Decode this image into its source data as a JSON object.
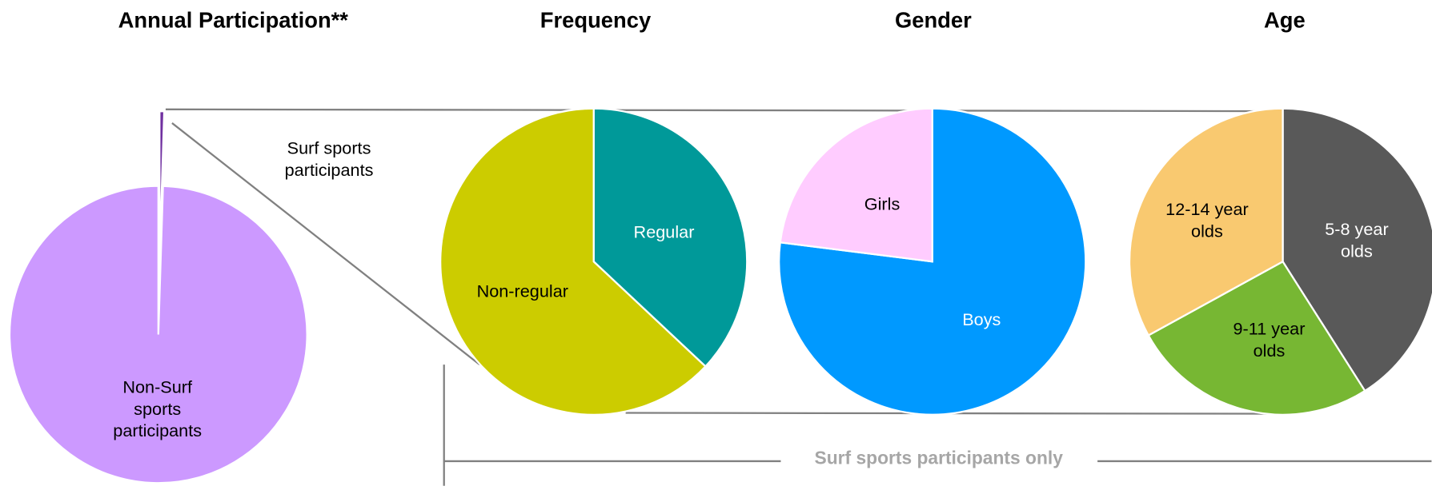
{
  "chart_data": [
    {
      "type": "pie",
      "title": "Annual Participation**",
      "categories": [
        "Surf sports participants",
        "Non-Surf sports participants"
      ],
      "values": [
        0.5,
        99.5
      ],
      "colors": [
        "#7030a0",
        "#cc99ff"
      ]
    },
    {
      "type": "pie",
      "title": "Frequency",
      "categories": [
        "Regular",
        "Non-regular"
      ],
      "values": [
        37,
        63
      ],
      "colors": [
        "#009999",
        "#cccc00"
      ]
    },
    {
      "type": "pie",
      "title": "Gender",
      "categories": [
        "Boys",
        "Girls"
      ],
      "values": [
        77,
        23
      ],
      "colors": [
        "#0099ff",
        "#ffccff"
      ]
    },
    {
      "type": "pie",
      "title": "Age",
      "categories": [
        "5-8 year olds",
        "9-11 year olds",
        "12-14 year olds"
      ],
      "values": [
        41,
        26,
        33
      ],
      "colors": [
        "#595959",
        "#77b733",
        "#f9c970"
      ]
    }
  ],
  "annotation": "Surf sports participants only"
}
